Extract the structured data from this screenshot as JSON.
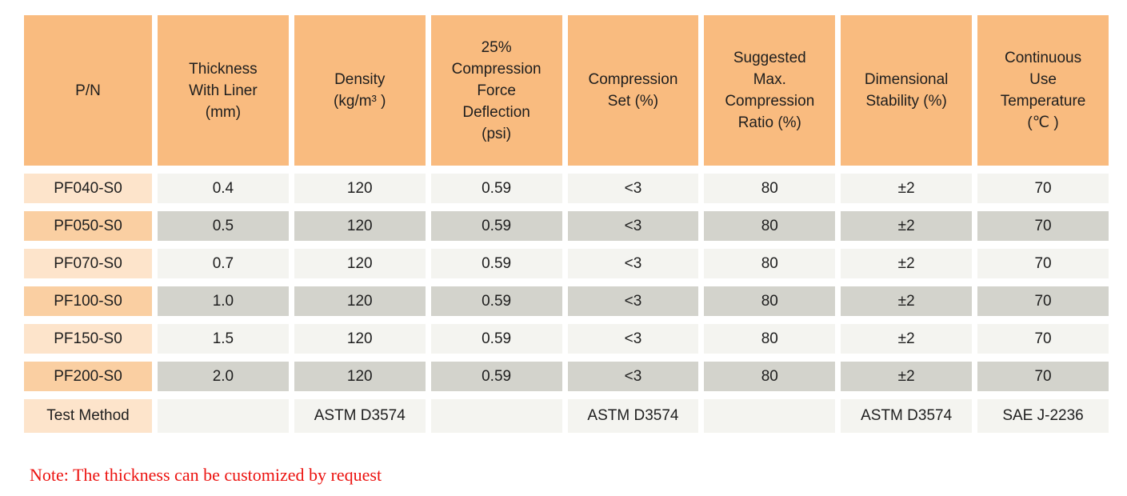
{
  "table": {
    "columns": [
      {
        "key": "pn",
        "label": "P/N"
      },
      {
        "key": "thickness-with-liner",
        "label": "Thickness\nWith Liner\n(mm)"
      },
      {
        "key": "density",
        "label": "Density\n(kg/m³ )"
      },
      {
        "key": "compression-force-deflection",
        "label": "25%\nCompression\nForce\nDeflection\n(psi)"
      },
      {
        "key": "compression-set",
        "label": "Compression\nSet (%)"
      },
      {
        "key": "suggested-max-compression-ratio",
        "label": "Suggested\nMax.\nCompression\nRatio (%)"
      },
      {
        "key": "dimensional-stability",
        "label": "Dimensional\nStability (%)"
      },
      {
        "key": "continuous-use-temperature",
        "label": "Continuous\nUse\nTemperature\n(℃ )"
      }
    ],
    "rows": [
      {
        "pn": "PF040-S0",
        "values": [
          "0.4",
          "120",
          "0.59",
          "<3",
          "80",
          "±2",
          "70"
        ]
      },
      {
        "pn": "PF050-S0",
        "values": [
          "0.5",
          "120",
          "0.59",
          "<3",
          "80",
          "±2",
          "70"
        ]
      },
      {
        "pn": "PF070-S0",
        "values": [
          "0.7",
          "120",
          "0.59",
          "<3",
          "80",
          "±2",
          "70"
        ]
      },
      {
        "pn": "PF100-S0",
        "values": [
          "1.0",
          "120",
          "0.59",
          "<3",
          "80",
          "±2",
          "70"
        ]
      },
      {
        "pn": "PF150-S0",
        "values": [
          "1.5",
          "120",
          "0.59",
          "<3",
          "80",
          "±2",
          "70"
        ]
      },
      {
        "pn": "PF200-S0",
        "values": [
          "2.0",
          "120",
          "0.59",
          "<3",
          "80",
          "±2",
          "70"
        ]
      }
    ],
    "test_method_row": {
      "label": "Test Method",
      "values": [
        "",
        "ASTM D3574",
        "",
        "ASTM D3574",
        "",
        "ASTM D3574",
        "SAE J-2236"
      ]
    }
  },
  "note": {
    "text": "Note: The thickness can be customized by request"
  },
  "colors": {
    "header_bg": "#F9BB7F",
    "pn_light_bg": "#FDE4CB",
    "pn_dark_bg": "#FACFA2",
    "cell_light_bg": "#F4F4F0",
    "cell_dark_bg": "#D3D3CC",
    "text": "#1E1E1E",
    "note_red": "#EC1310"
  }
}
